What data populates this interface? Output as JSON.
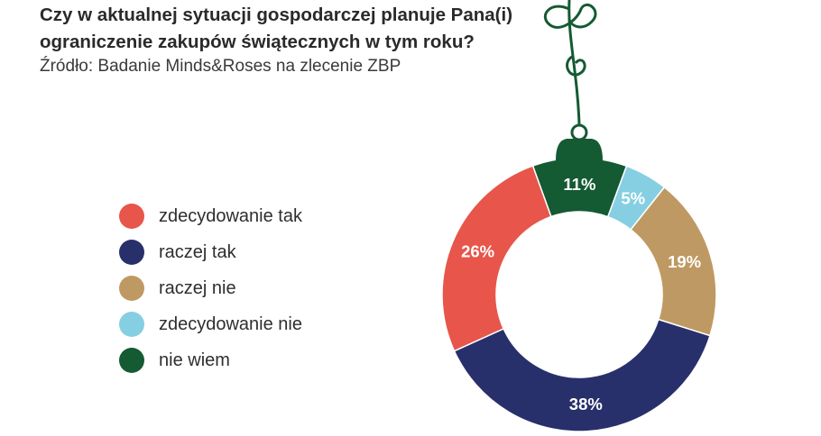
{
  "chart_data": {
    "type": "pie",
    "title": "Czy w aktualnej sytuacji gospodarczej planuje Pana(i) ograniczenie zakupów świątecznych w tym roku?",
    "subtitle": "Źródło: Badanie Minds&Roses na zlecenie ZBP",
    "legend_position": "left",
    "slices": [
      {
        "label": "zdecydowanie tak",
        "value": 26,
        "value_label": "26%",
        "color": "#e8554a"
      },
      {
        "label": "raczej tak",
        "value": 38,
        "value_label": "38%",
        "color": "#27306a"
      },
      {
        "label": "raczej nie",
        "value": 19,
        "value_label": "19%",
        "color": "#bf9963"
      },
      {
        "label": "zdecydowanie nie",
        "value": 5,
        "value_label": "5%",
        "color": "#86cfe2"
      },
      {
        "label": "nie wiem",
        "value": 11,
        "value_label": "11%",
        "color": "#145a32"
      }
    ]
  },
  "ornament": {
    "string_color": "#145a32"
  }
}
